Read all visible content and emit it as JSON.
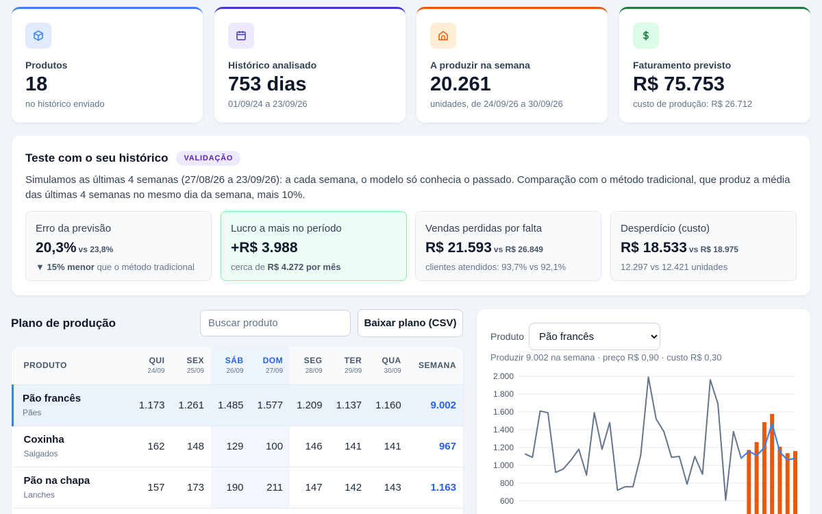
{
  "kpis": [
    {
      "label": "Produtos",
      "value": "18",
      "sub": "no histórico enviado",
      "color": "#3b82f6",
      "bg": "#e0ecfd",
      "icon": "cube-icon"
    },
    {
      "label": "Histórico analisado",
      "value": "753 dias",
      "sub": "01/09/24 a 23/09/26",
      "color": "#4338ca",
      "bg": "#ede9fe",
      "icon": "calendar-icon"
    },
    {
      "label": "A produzir na semana",
      "value": "20.261",
      "sub": "unidades, de 24/09/26 a 30/09/26",
      "color": "#ea580c",
      "bg": "#ffedd5",
      "icon": "oven-icon"
    },
    {
      "label": "Faturamento previsto",
      "value": "R$ 75.753",
      "sub": "custo de produção: R$ 26.712",
      "color": "#15803d",
      "bg": "#dcfce7",
      "icon": "dollar-icon"
    }
  ],
  "validation": {
    "title": "Teste com o seu histórico",
    "badge": "VALIDAÇÃO",
    "description": "Simulamos as últimas 4 semanas (27/08/26 a 23/09/26): a cada semana, o modelo só conhecia o passado. Comparação com o método tradicional, que produz a média das últimas 4 semanas no mesmo dia da semana, mais 10%.",
    "metrics": [
      {
        "label": "Erro da previsão",
        "value": "20,3%",
        "vs": "vs 23,8%",
        "sub_strong": "▼ 15% menor",
        "sub": " que o método tradicional"
      },
      {
        "label": "Lucro a mais no período",
        "value": "+R$ 3.988",
        "sub_pre": "cerca de ",
        "sub_strong": "R$ 4.272 por mês"
      },
      {
        "label": "Vendas perdidas por falta",
        "value": "R$ 21.593",
        "vs": "vs R$ 26.849",
        "sub": "clientes atendidos: 93,7% vs 92,1%"
      },
      {
        "label": "Desperdício (custo)",
        "value": "R$ 18.533",
        "vs": "vs R$ 18.975",
        "sub": "12.297 vs 12.421 unidades"
      }
    ]
  },
  "plan": {
    "title": "Plano de produção",
    "search_placeholder": "Buscar produto",
    "download_label": "Baixar plano (CSV)",
    "col_product": "PRODUTO",
    "col_week": "SEMANA",
    "days": [
      {
        "name": "QUI",
        "date": "24/09"
      },
      {
        "name": "SEX",
        "date": "25/09"
      },
      {
        "name": "SÁB",
        "date": "26/09"
      },
      {
        "name": "DOM",
        "date": "27/09"
      },
      {
        "name": "SEG",
        "date": "28/09"
      },
      {
        "name": "TER",
        "date": "29/09"
      },
      {
        "name": "QUA",
        "date": "30/09"
      }
    ],
    "rows": [
      {
        "name": "Pão francês",
        "category": "Pães",
        "values": [
          "1.173",
          "1.261",
          "1.485",
          "1.577",
          "1.209",
          "1.137",
          "1.160"
        ],
        "total": "9.002"
      },
      {
        "name": "Coxinha",
        "category": "Salgados",
        "values": [
          "162",
          "148",
          "129",
          "100",
          "146",
          "141",
          "141"
        ],
        "total": "967"
      },
      {
        "name": "Pão na chapa",
        "category": "Lanches",
        "values": [
          "157",
          "173",
          "190",
          "211",
          "147",
          "142",
          "143"
        ],
        "total": "1.163"
      }
    ]
  },
  "detail": {
    "product_label": "Produto",
    "product_selected": "Pão francês",
    "info": "Produzir 9.002 na semana · preço R$ 0,90 · custo R$ 0,30"
  },
  "chart_data": {
    "type": "line",
    "y_ticks": [
      "2.000",
      "1.800",
      "1.600",
      "1.400",
      "1.200",
      "1.000",
      "800",
      "600"
    ],
    "ylim": [
      600,
      2000
    ],
    "grid": true,
    "series": [
      {
        "color": "#64748b",
        "values": [
          1130,
          1090,
          1610,
          1590,
          920,
          960,
          1060,
          1180,
          890,
          1590,
          1180,
          1480,
          720,
          760,
          760,
          1110,
          1990,
          1520,
          1380,
          1090,
          1100,
          790,
          1100,
          900,
          1960,
          1690,
          610,
          1380,
          1080,
          1160,
          1110,
          1200,
          1470,
          1150,
          1060,
          1080
        ]
      },
      {
        "color": "#3b82f6",
        "values": [
          null,
          null,
          null,
          null,
          null,
          null,
          null,
          null,
          null,
          null,
          null,
          null,
          null,
          null,
          null,
          null,
          null,
          null,
          null,
          null,
          null,
          null,
          null,
          null,
          null,
          null,
          null,
          null,
          1080,
          1160,
          1110,
          1200,
          1470,
          1150,
          1060,
          1080
        ]
      }
    ],
    "bars": {
      "color": "#ea580c",
      "start_index": 29,
      "values": [
        1173,
        1261,
        1485,
        1577,
        1209,
        1137,
        1160
      ]
    }
  }
}
